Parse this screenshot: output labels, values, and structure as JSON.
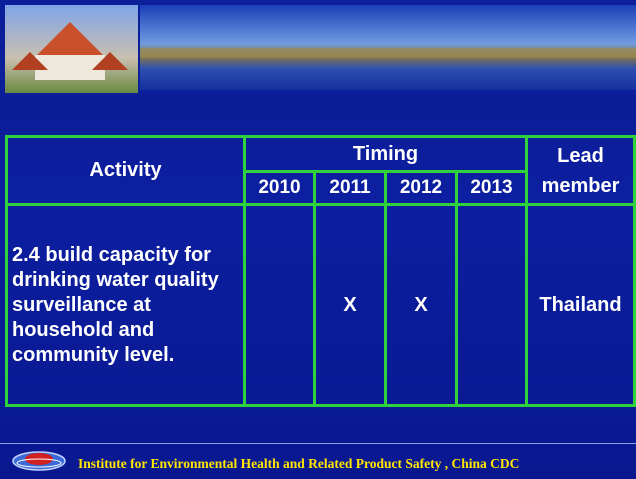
{
  "table": {
    "header": {
      "activity": "Activity",
      "timing": "Timing",
      "years": [
        "2010",
        "2011",
        "2012",
        "2013"
      ],
      "lead": "Lead member"
    },
    "row": {
      "activity": "2.4 build capacity for drinking water quality surveillance at household and community level.",
      "timing": [
        null,
        "X",
        "X",
        null
      ],
      "lead": "Thailand"
    }
  },
  "footer": {
    "institute": "Institute for Environmental Health and Related Product Safety , China CDC"
  }
}
